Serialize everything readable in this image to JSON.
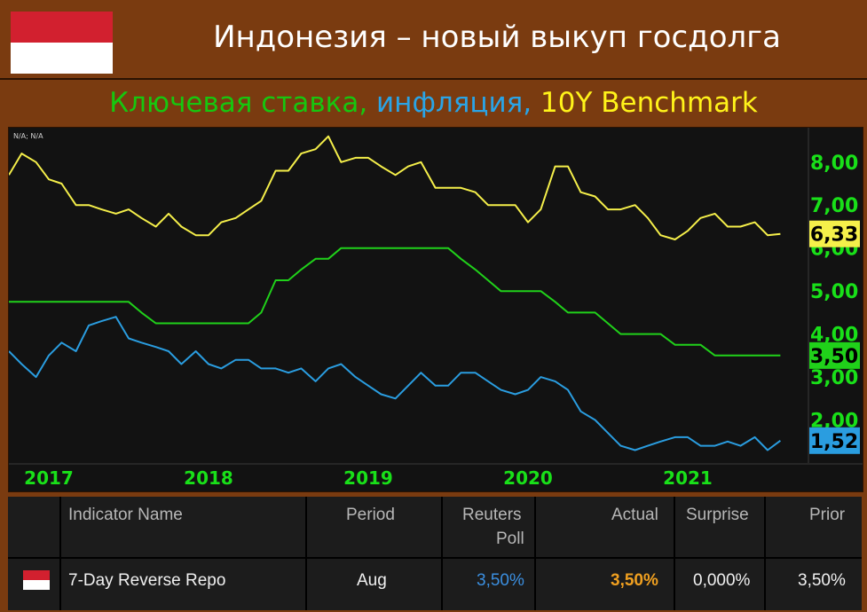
{
  "header": {
    "title": "Индонезия – новый выкуп госдолга",
    "subtitle_parts": [
      {
        "text": "Ключевая ставка, ",
        "color": "#17c60f"
      },
      {
        "text": "инфляция, ",
        "color": "#2aa4e6"
      },
      {
        "text": "10Y Benchmark",
        "color": "#fff31a"
      }
    ]
  },
  "chart_data": {
    "type": "line",
    "corner_label": "N/A; N/A",
    "x_ticks": [
      "2017",
      "2018",
      "2019",
      "2020",
      "2021"
    ],
    "x": [
      2016.75,
      2016.83,
      2016.92,
      2017.0,
      2017.08,
      2017.17,
      2017.25,
      2017.33,
      2017.42,
      2017.5,
      2017.58,
      2017.67,
      2017.75,
      2017.83,
      2017.92,
      2018.0,
      2018.08,
      2018.17,
      2018.25,
      2018.33,
      2018.42,
      2018.5,
      2018.58,
      2018.67,
      2018.75,
      2018.83,
      2018.92,
      2019.0,
      2019.08,
      2019.17,
      2019.25,
      2019.33,
      2019.42,
      2019.5,
      2019.58,
      2019.67,
      2019.75,
      2019.83,
      2019.92,
      2020.0,
      2020.08,
      2020.17,
      2020.25,
      2020.33,
      2020.42,
      2020.5,
      2020.58,
      2020.67,
      2020.75,
      2020.83,
      2020.92,
      2021.0,
      2021.08,
      2021.17,
      2021.25,
      2021.33,
      2021.42,
      2021.5,
      2021.58
    ],
    "xlim": [
      2016.75,
      2021.75
    ],
    "ylim": [
      1.0,
      8.8
    ],
    "y_ticks": [
      2,
      3,
      4,
      5,
      6,
      7,
      8
    ],
    "y_tick_labels": [
      "2,00",
      "3,00",
      "4,00",
      "5,00",
      "6,00",
      "7,00",
      "8,00"
    ],
    "grid": false,
    "series": [
      {
        "name": "10Y Benchmark",
        "color": "#f5ef4a",
        "last_label": "6,33",
        "values": [
          7.7,
          8.2,
          8.0,
          7.6,
          7.5,
          7.0,
          7.0,
          6.9,
          6.8,
          6.9,
          6.7,
          6.5,
          6.8,
          6.5,
          6.3,
          6.3,
          6.6,
          6.7,
          6.9,
          7.1,
          7.8,
          7.8,
          8.2,
          8.3,
          8.6,
          8.0,
          8.1,
          8.1,
          7.9,
          7.7,
          7.9,
          8.0,
          7.4,
          7.4,
          7.4,
          7.3,
          7.0,
          7.0,
          7.0,
          6.6,
          6.9,
          7.9,
          7.9,
          7.3,
          7.2,
          6.9,
          6.9,
          7.0,
          6.7,
          6.3,
          6.2,
          6.4,
          6.7,
          6.8,
          6.5,
          6.5,
          6.6,
          6.3,
          6.33
        ]
      },
      {
        "name": "Ключевая ставка",
        "color": "#20d11a",
        "last_label": "3,50",
        "values": [
          4.75,
          4.75,
          4.75,
          4.75,
          4.75,
          4.75,
          4.75,
          4.75,
          4.75,
          4.75,
          4.5,
          4.25,
          4.25,
          4.25,
          4.25,
          4.25,
          4.25,
          4.25,
          4.25,
          4.5,
          5.25,
          5.25,
          5.5,
          5.75,
          5.75,
          6.0,
          6.0,
          6.0,
          6.0,
          6.0,
          6.0,
          6.0,
          6.0,
          6.0,
          5.75,
          5.5,
          5.25,
          5.0,
          5.0,
          5.0,
          5.0,
          4.75,
          4.5,
          4.5,
          4.5,
          4.25,
          4.0,
          4.0,
          4.0,
          4.0,
          3.75,
          3.75,
          3.75,
          3.5,
          3.5,
          3.5,
          3.5,
          3.5,
          3.5
        ]
      },
      {
        "name": "инфляция",
        "color": "#2a9de0",
        "last_label": "1,52",
        "values": [
          3.6,
          3.3,
          3.0,
          3.5,
          3.8,
          3.6,
          4.2,
          4.3,
          4.4,
          3.9,
          3.8,
          3.7,
          3.6,
          3.3,
          3.6,
          3.3,
          3.2,
          3.4,
          3.4,
          3.2,
          3.2,
          3.1,
          3.2,
          2.9,
          3.2,
          3.3,
          3.0,
          2.8,
          2.6,
          2.5,
          2.8,
          3.1,
          2.8,
          2.8,
          3.1,
          3.1,
          2.9,
          2.7,
          2.6,
          2.7,
          3.0,
          2.9,
          2.7,
          2.2,
          2.0,
          1.7,
          1.4,
          1.3,
          1.4,
          1.5,
          1.6,
          1.6,
          1.4,
          1.4,
          1.5,
          1.4,
          1.6,
          1.3,
          1.52
        ]
      }
    ]
  },
  "table": {
    "headers": {
      "indicator": "Indicator Name",
      "period": "Period",
      "poll_line1": "Reuters",
      "poll_line2": "Poll",
      "actual": "Actual",
      "surprise": "Surprise",
      "prior": "Prior"
    },
    "row": {
      "indicator": "7-Day Reverse Repo",
      "period": "Aug",
      "poll": "3,50%",
      "actual": "3,50%",
      "surprise": "0,000%",
      "prior": "3,50%"
    },
    "colors": {
      "poll": "#3b8fe0",
      "actual": "#f0a020"
    }
  }
}
